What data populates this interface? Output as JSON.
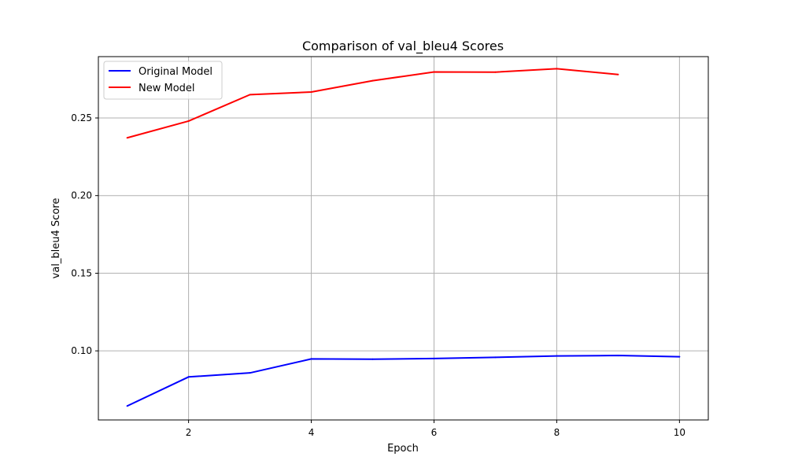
{
  "chart_data": {
    "type": "line",
    "title": "Comparison of val_bleu4 Scores",
    "xlabel": "Epoch",
    "ylabel": "val_bleu4 Score",
    "xlim": [
      0.53,
      10.47
    ],
    "ylim": [
      0.0555,
      0.2895
    ],
    "xticks": [
      2,
      4,
      6,
      8,
      10
    ],
    "xtick_labels": [
      "2",
      "4",
      "6",
      "8",
      "10"
    ],
    "yticks": [
      0.1,
      0.15,
      0.2,
      0.25
    ],
    "ytick_labels": [
      "0.10",
      "0.15",
      "0.20",
      "0.25"
    ],
    "grid": true,
    "legend_position": "top-left",
    "series": [
      {
        "name": "Original Model",
        "color": "#0000ff",
        "x": [
          1,
          2,
          3,
          4,
          5,
          6,
          7,
          8,
          9,
          10
        ],
        "values": [
          0.0645,
          0.0832,
          0.0858,
          0.0948,
          0.0946,
          0.0951,
          0.0958,
          0.0967,
          0.097,
          0.0962
        ]
      },
      {
        "name": "New Model",
        "color": "#ff0000",
        "x": [
          1,
          2,
          3,
          4,
          5,
          6,
          7,
          8,
          9
        ],
        "values": [
          0.2372,
          0.248,
          0.265,
          0.2667,
          0.274,
          0.2796,
          0.2795,
          0.2817,
          0.278
        ]
      }
    ]
  }
}
